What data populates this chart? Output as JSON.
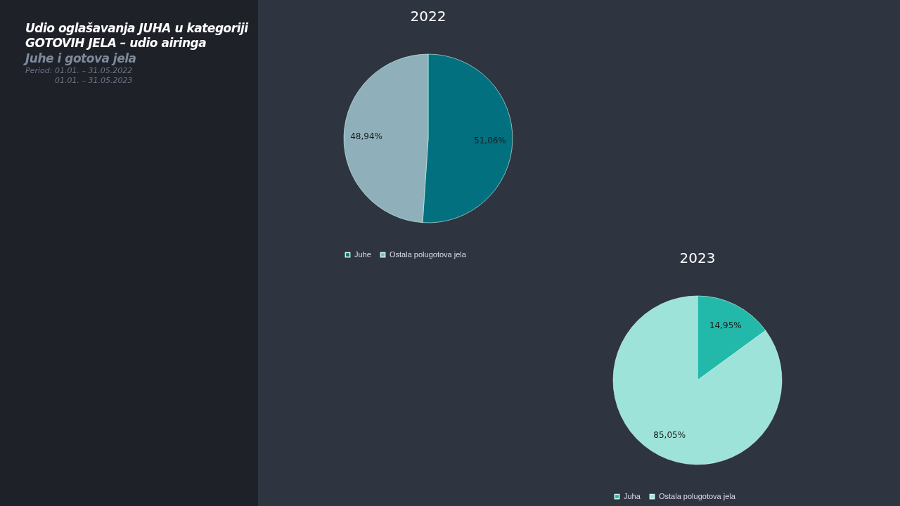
{
  "chart_data": [
    {
      "type": "other",
      "title": "Udio oglašavanja JUHA u kategoriji GOTOVIH JELA – udio airinga",
      "subtitle": "Juhe i gotova jela",
      "annotations": [
        "Period: 01.01. – 31.05.2022",
        "01.01. – 31.05.2023"
      ]
    },
    {
      "type": "pie",
      "title": "2022",
      "categories": [
        "Juhe",
        "Ostala polugotova jela"
      ],
      "values": [
        51.06,
        48.94
      ],
      "colors": [
        "#03707f",
        "#8fb0bb"
      ],
      "value_labels": [
        "51,06%",
        "48,94%"
      ],
      "legend": "bottom"
    },
    {
      "type": "pie",
      "title": "2023",
      "categories": [
        "Juha",
        "Ostala polugotova jela"
      ],
      "values": [
        14.95,
        85.05
      ],
      "colors": [
        "#22b9aa",
        "#9de3da"
      ],
      "value_labels": [
        "14,95%",
        "85,05%"
      ],
      "legend": "bottom"
    }
  ]
}
